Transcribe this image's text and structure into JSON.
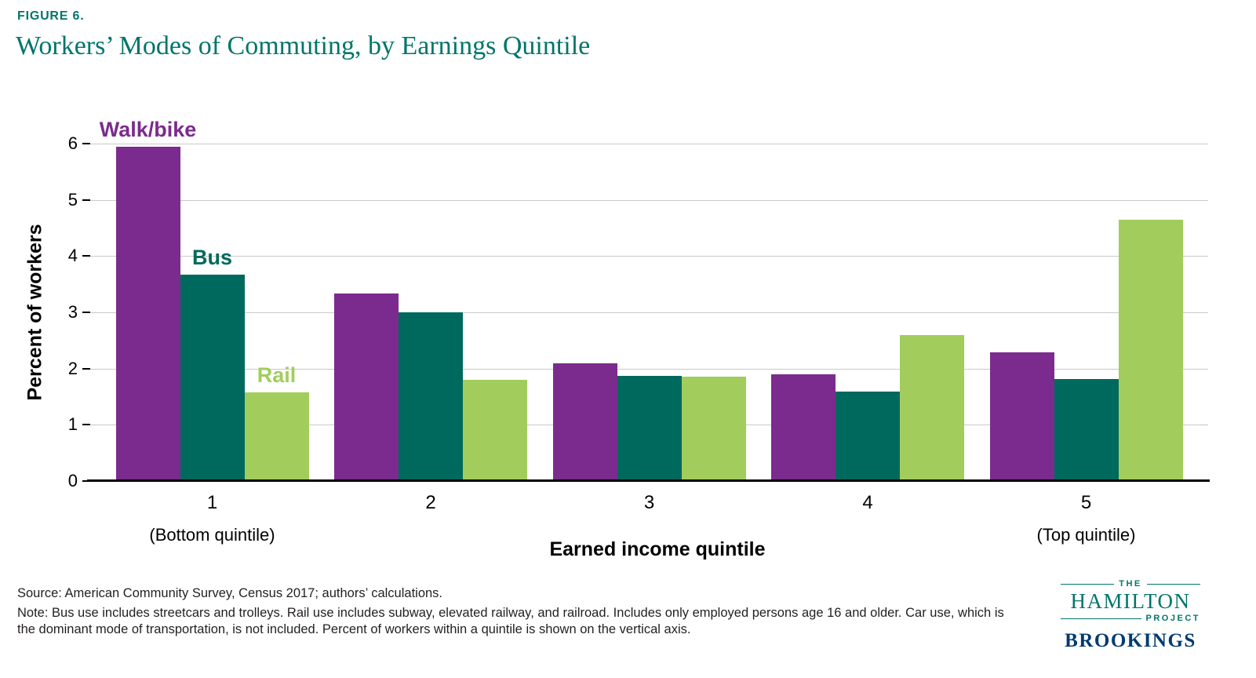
{
  "figure_label": "FIGURE 6.",
  "title": "Workers’ Modes of Commuting, by Earnings Quintile",
  "chart_data": {
    "type": "bar",
    "title": "Workers’ Modes of Commuting, by Earnings Quintile",
    "xlabel": "Earned income quintile",
    "ylabel": "Percent of workers",
    "ylim": [
      0,
      6
    ],
    "yticks": [
      0,
      1,
      2,
      3,
      4,
      5,
      6
    ],
    "grid": true,
    "legend_position": "inline-labels-above-first-group",
    "categories": [
      "1",
      "2",
      "3",
      "4",
      "5"
    ],
    "category_sublabels": [
      "(Bottom quintile)",
      "",
      "",
      "",
      "(Top quintile)"
    ],
    "series": [
      {
        "name": "Walk/bike",
        "color": "#7b2b8d",
        "values": [
          5.95,
          3.33,
          2.1,
          1.9,
          2.29
        ]
      },
      {
        "name": "Bus",
        "color": "#00695e",
        "values": [
          3.67,
          3.0,
          1.87,
          1.59,
          1.82
        ]
      },
      {
        "name": "Rail",
        "color": "#a2cd5c",
        "values": [
          1.57,
          1.8,
          1.85,
          2.6,
          4.65
        ]
      }
    ]
  },
  "source_text": "Source: American Community Survey, Census 2017; authors’ calculations.",
  "note_text": "Note: Bus use includes streetcars and trolleys. Rail use includes subway, elevated railway, and railroad. Includes only employed persons age 16 and older. Car use, which is the dominant mode of transportation, is not included. Percent of workers within a quintile is shown on the vertical axis.",
  "logos": {
    "hamilton": {
      "the": "THE",
      "name": "HAMILTON",
      "project": "PROJECT"
    },
    "brookings": "BROOKINGS"
  },
  "colors": {
    "accent_teal": "#00756b",
    "walk_bike_purple": "#7b2b8d",
    "bus_teal": "#00695e",
    "rail_green": "#a2cd5c",
    "gridline_gray": "#c9c9c9",
    "brookings_navy": "#003a70"
  }
}
